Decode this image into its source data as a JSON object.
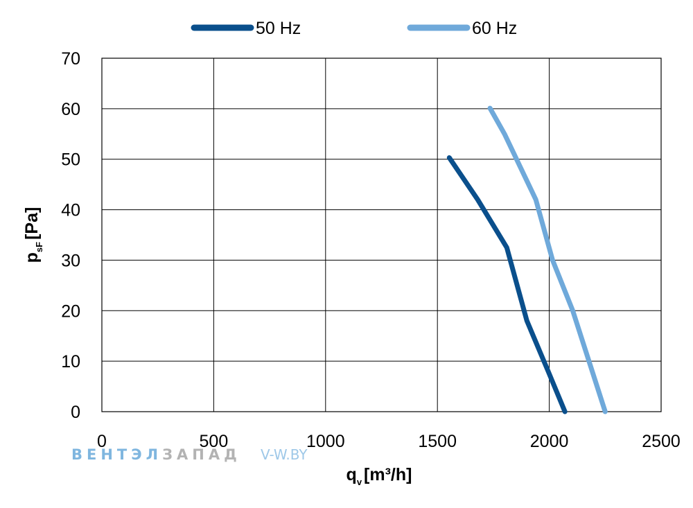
{
  "chart_data": {
    "type": "line",
    "xlabel": {
      "main": "q",
      "sub": "v",
      "unit": "[m³/h]"
    },
    "ylabel": {
      "main": "p",
      "sub": "sF",
      "unit": "[Pa]"
    },
    "xlim": [
      0,
      2500
    ],
    "ylim": [
      0,
      70
    ],
    "xticks": [
      "0",
      "500",
      "1000",
      "1500",
      "2000",
      "2500"
    ],
    "yticks": [
      "0",
      "10",
      "20",
      "30",
      "40",
      "50",
      "60",
      "70"
    ],
    "grid": true,
    "legend_position": "top",
    "series": [
      {
        "name": "50 Hz",
        "color": "#0a4f8c",
        "x": [
          1553,
          1680,
          1810,
          1900,
          1995,
          2070
        ],
        "y": [
          50.3,
          42,
          32.5,
          18,
          8,
          0
        ]
      },
      {
        "name": "60 Hz",
        "color": "#6fa9da",
        "x": [
          1735,
          1800,
          1940,
          2015,
          2105,
          2250
        ],
        "y": [
          60.1,
          55,
          42,
          30,
          20,
          0
        ]
      }
    ]
  },
  "watermark": {
    "part1": "ВЕНТЭЛ",
    "part2": "ЗАПАД",
    "url": "V-W.BY"
  }
}
